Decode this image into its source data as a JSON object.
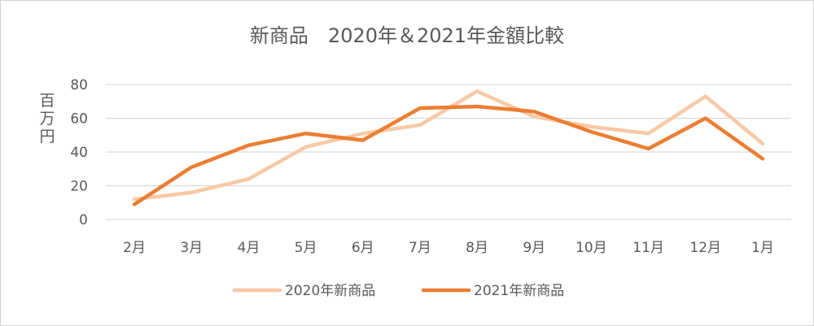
{
  "chart_data": {
    "type": "line",
    "title": "新商品　2020年＆2021年金額比較",
    "ylabel": "百万円",
    "xlabel": "",
    "ylim": [
      0,
      80
    ],
    "yticks": [
      "0",
      "20",
      "40",
      "60",
      "80"
    ],
    "categories": [
      "2月",
      "3月",
      "4月",
      "5月",
      "6月",
      "7月",
      "8月",
      "9月",
      "10月",
      "11月",
      "12月",
      "1月"
    ],
    "series": [
      {
        "name": "2020年新商品",
        "color": "#f8c8a4",
        "values": [
          12,
          16,
          24,
          43,
          51,
          56,
          76,
          61,
          55,
          51,
          73,
          45
        ]
      },
      {
        "name": "2021年新商品",
        "color": "#ed7d31",
        "values": [
          9,
          31,
          44,
          51,
          47,
          66,
          67,
          64,
          52,
          42,
          60,
          36
        ]
      }
    ],
    "grid": true,
    "legend_position": "bottom"
  }
}
